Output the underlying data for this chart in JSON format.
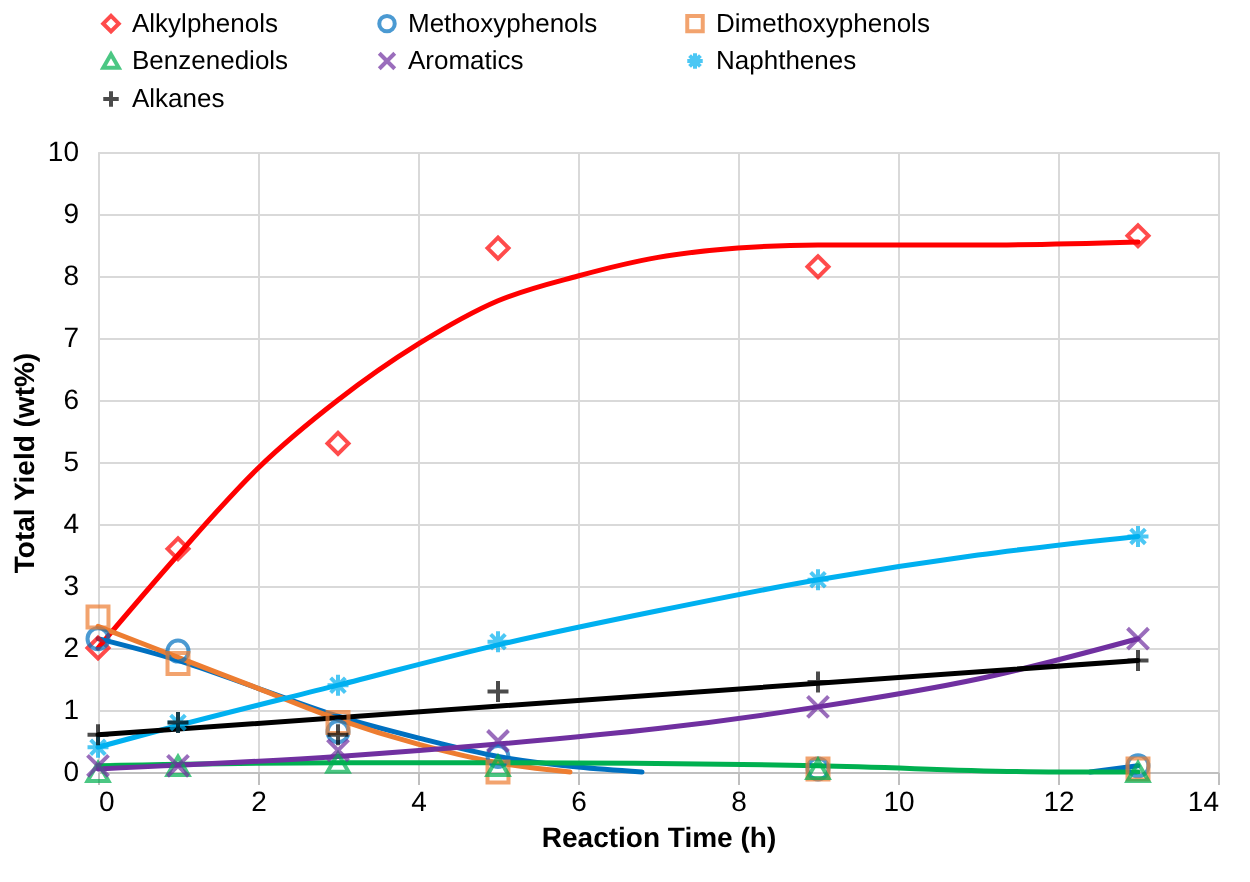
{
  "chart_data": {
    "type": "scatter",
    "xlabel": "Reaction Time (h)",
    "ylabel": "Total Yield (wt%)",
    "xlim": [
      0,
      14
    ],
    "xticks": [
      0,
      2,
      4,
      6,
      8,
      10,
      12,
      14
    ],
    "ylim": [
      0,
      10
    ],
    "yticks": [
      0,
      1,
      2,
      3,
      4,
      5,
      6,
      7,
      8,
      9,
      10
    ],
    "grid": true,
    "legend": "top",
    "series": [
      {
        "name": "Alkylphenols",
        "type": "scatter",
        "marker": "diamond",
        "color": "#ff0000",
        "x": [
          0,
          1,
          3,
          5,
          9,
          13
        ],
        "values": [
          2.0,
          3.6,
          5.3,
          8.45,
          8.15,
          8.65
        ]
      },
      {
        "name": "Methoxyphenols",
        "type": "scatter",
        "marker": "circle",
        "color": "#0070c0",
        "x": [
          0,
          1,
          3,
          5,
          9,
          13
        ],
        "values": [
          2.15,
          1.95,
          0.65,
          0.25,
          0.05,
          0.1
        ]
      },
      {
        "name": "Dimethoxyphenols",
        "type": "scatter",
        "marker": "square",
        "color": "#ed7d31",
        "x": [
          0,
          1,
          3,
          5,
          9,
          13
        ],
        "values": [
          2.5,
          1.75,
          0.8,
          0.0,
          0.05,
          0.05
        ]
      },
      {
        "name": "Benzenediols",
        "type": "scatter",
        "marker": "triangle",
        "color": "#00b050",
        "x": [
          0,
          1,
          3,
          5,
          9,
          13
        ],
        "values": [
          0.0,
          0.1,
          0.15,
          0.1,
          0.05,
          0.0
        ]
      },
      {
        "name": "Aromatics",
        "type": "scatter",
        "marker": "cross",
        "color": "#7030a0",
        "x": [
          0,
          1,
          3,
          5,
          9,
          13
        ],
        "values": [
          0.1,
          0.1,
          0.35,
          0.5,
          1.05,
          2.15
        ]
      },
      {
        "name": "Naphthenes",
        "type": "scatter",
        "color": "#00b0f0",
        "x": [
          0,
          1,
          3,
          5,
          9,
          13
        ],
        "values": [
          0.4,
          0.8,
          1.4,
          2.1,
          3.1,
          3.8
        ]
      },
      {
        "name": "Alkanes",
        "type": "scatter",
        "marker": "plus",
        "color": "#000000",
        "x": [
          0,
          1,
          3,
          5,
          9,
          13
        ],
        "values": [
          0.6,
          0.8,
          0.6,
          1.3,
          1.45,
          1.8
        ]
      },
      {
        "type": "line",
        "color": "#ff0000",
        "x": [
          0,
          1,
          2,
          3,
          4,
          5,
          6,
          7,
          8,
          9,
          11,
          13
        ],
        "values": [
          2.0,
          3.5,
          4.9,
          6.0,
          6.9,
          7.6,
          8.0,
          8.3,
          8.45,
          8.5,
          8.5,
          8.55
        ]
      },
      {
        "type": "line",
        "color": "#0070c0",
        "x": [
          0,
          1,
          2,
          3,
          4,
          5,
          6,
          6.8,
          9,
          12.4,
          13
        ],
        "values": [
          2.15,
          1.8,
          1.35,
          0.9,
          0.55,
          0.25,
          0.08,
          0,
          null,
          0,
          0.1
        ]
      },
      {
        "type": "line",
        "color": "#ed7d31",
        "x": [
          0,
          1,
          2,
          3,
          4,
          5,
          5.9
        ],
        "values": [
          2.35,
          1.85,
          1.35,
          0.85,
          0.45,
          0.15,
          0
        ]
      },
      {
        "type": "line",
        "color": "#00b050",
        "x": [
          0,
          3,
          5,
          9,
          12,
          13
        ],
        "values": [
          0.1,
          0.15,
          0.15,
          0.1,
          0,
          0
        ]
      },
      {
        "type": "line",
        "color": "#7030a0",
        "x": [
          0,
          3,
          5,
          7,
          9,
          11,
          13
        ],
        "values": [
          0.05,
          0.25,
          0.45,
          0.7,
          1.05,
          1.5,
          2.15
        ]
      },
      {
        "type": "line",
        "color": "#00b0f0",
        "x": [
          0,
          1,
          3,
          5,
          7,
          9,
          11,
          13
        ],
        "values": [
          0.4,
          0.75,
          1.4,
          2.05,
          2.6,
          3.1,
          3.5,
          3.8
        ]
      },
      {
        "type": "line",
        "color": "#000000",
        "x": [
          0,
          13
        ],
        "values": [
          0.6,
          1.8
        ]
      }
    ]
  }
}
